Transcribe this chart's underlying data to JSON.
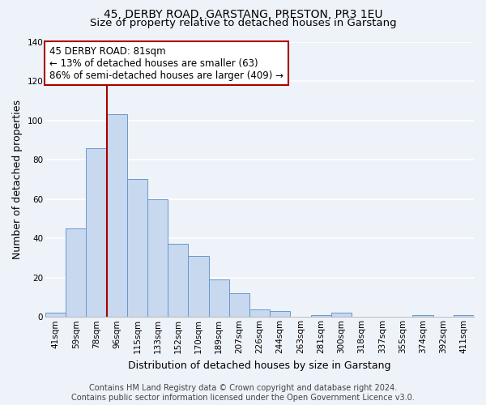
{
  "title": "45, DERBY ROAD, GARSTANG, PRESTON, PR3 1EU",
  "subtitle": "Size of property relative to detached houses in Garstang",
  "xlabel": "Distribution of detached houses by size in Garstang",
  "ylabel": "Number of detached properties",
  "bin_labels": [
    "41sqm",
    "59sqm",
    "78sqm",
    "96sqm",
    "115sqm",
    "133sqm",
    "152sqm",
    "170sqm",
    "189sqm",
    "207sqm",
    "226sqm",
    "244sqm",
    "263sqm",
    "281sqm",
    "300sqm",
    "318sqm",
    "337sqm",
    "355sqm",
    "374sqm",
    "392sqm",
    "411sqm"
  ],
  "bar_values": [
    2,
    45,
    86,
    103,
    70,
    60,
    37,
    31,
    19,
    12,
    4,
    3,
    0,
    1,
    2,
    0,
    0,
    0,
    1,
    0,
    1
  ],
  "bar_color": "#c8d8ef",
  "bar_edge_color": "#6699cc",
  "bar_width": 1.0,
  "ylim": [
    0,
    140
  ],
  "yticks": [
    0,
    20,
    40,
    60,
    80,
    100,
    120,
    140
  ],
  "vline_x": 2.5,
  "vline_color": "#aa0000",
  "annotation_title": "45 DERBY ROAD: 81sqm",
  "annotation_line1": "← 13% of detached houses are smaller (63)",
  "annotation_line2": "86% of semi-detached houses are larger (409) →",
  "annotation_box_facecolor": "#ffffff",
  "annotation_box_edgecolor": "#aa0000",
  "footer_line1": "Contains HM Land Registry data © Crown copyright and database right 2024.",
  "footer_line2": "Contains public sector information licensed under the Open Government Licence v3.0.",
  "background_color": "#eef2f9",
  "grid_color": "#ffffff",
  "title_fontsize": 10,
  "subtitle_fontsize": 9.5,
  "axis_label_fontsize": 9,
  "tick_fontsize": 7.5,
  "annotation_fontsize": 8.5,
  "footer_fontsize": 7
}
